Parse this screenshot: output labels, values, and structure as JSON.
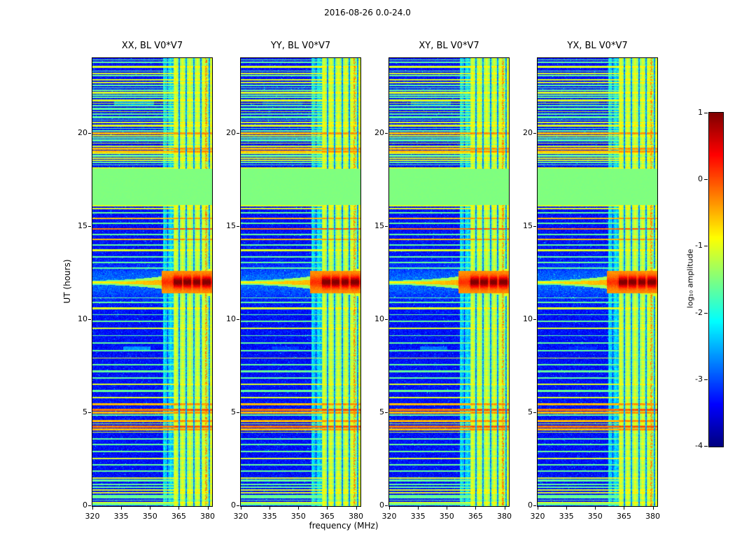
{
  "title": "2016-08-26 0.0-24.0",
  "axes": {
    "x_label": "frequency (MHz)",
    "y_label": "UT (hours)",
    "x_ticks": [
      320,
      335,
      350,
      365,
      380
    ],
    "y_ticks": [
      0,
      5,
      10,
      15,
      20
    ],
    "x_range": [
      320,
      382
    ],
    "y_range": [
      0,
      24
    ]
  },
  "colorbar": {
    "label": "log₁₀ amplitude",
    "ticks": [
      1,
      0,
      -1,
      -2,
      -3,
      -4
    ],
    "range": [
      -4,
      1
    ]
  },
  "chart_data": {
    "type": "heatmap",
    "title": "2016-08-26 0.0-24.0",
    "xlabel": "frequency (MHz)",
    "ylabel": "UT (hours)",
    "xlim": [
      320,
      382
    ],
    "ylim": [
      0,
      24
    ],
    "colormap": "jet",
    "value_scale": "log10 amplitude",
    "value_range": [
      -4,
      1
    ],
    "panels": [
      {
        "label": "XX, BL V0*V7"
      },
      {
        "label": "YY, BL V0*V7"
      },
      {
        "label": "XY, BL V0*V7"
      },
      {
        "label": "YX, BL V0*V7"
      }
    ],
    "seed": 20160826,
    "background_level": -3.6,
    "stripe_levels": {
      "g": -1.62,
      "y": -1.05,
      "o": -0.55,
      "r": -0.22
    },
    "features": {
      "flagged_block": {
        "t_start": 16.15,
        "t_end": 18.1,
        "level": -1.5
      },
      "rfi_band": {
        "f_start": 362,
        "f_end": 382,
        "level": -1.5,
        "bright_columns": [
          363.2,
          366.8,
          370.6,
          374.6,
          377.9,
          381.6
        ],
        "gap_columns": [
          364.9,
          368.7,
          372.6,
          376.4,
          380.6
        ],
        "red_column": [
          378.5,
          379.6
        ]
      },
      "cyan_band": {
        "f_start": 356.6,
        "f_end": 362.0,
        "level": -2.75
      },
      "burst": {
        "t_center": 12.0,
        "t_width": 0.3,
        "peak_level": 1.0,
        "line_t": 11.97,
        "band_blocks": [
          [
            362.3,
            366.4
          ],
          [
            367.2,
            371.4
          ],
          [
            372.2,
            376.1
          ],
          [
            377.0,
            381.6
          ]
        ]
      },
      "smears": [
        {
          "t": 21.65,
          "f1": 331,
          "f2": 352,
          "half_height": 0.13,
          "panel_amp": [
            1,
            0.5,
            0.8,
            0.45
          ]
        },
        {
          "t": 8.45,
          "f1": 336,
          "f2": 350,
          "half_height": 0.1,
          "panel_amp": [
            0.9,
            0.4,
            0.7,
            0.3
          ]
        }
      ],
      "stripes": [
        [
          23.92,
          "g"
        ],
        [
          23.78,
          "g"
        ],
        [
          23.55,
          "y"
        ],
        [
          23.32,
          "g"
        ],
        [
          23.2,
          "y"
        ],
        [
          23.08,
          "g"
        ],
        [
          22.85,
          "y"
        ],
        [
          22.7,
          "y"
        ],
        [
          22.55,
          "g"
        ],
        [
          22.42,
          "g"
        ],
        [
          22.28,
          "g"
        ],
        [
          22.15,
          "y"
        ],
        [
          22.02,
          "g"
        ],
        [
          21.9,
          "g"
        ],
        [
          21.75,
          "y"
        ],
        [
          21.6,
          "y"
        ],
        [
          21.45,
          "g"
        ],
        [
          21.3,
          "g"
        ],
        [
          21.15,
          "y"
        ],
        [
          21.0,
          "g"
        ],
        [
          20.85,
          "g"
        ],
        [
          20.7,
          "g"
        ],
        [
          20.55,
          "y"
        ],
        [
          20.4,
          "y"
        ],
        [
          20.25,
          "g"
        ],
        [
          20.1,
          "g"
        ],
        [
          19.98,
          "o"
        ],
        [
          19.85,
          "y"
        ],
        [
          19.72,
          "g"
        ],
        [
          19.6,
          "g"
        ],
        [
          19.45,
          "y"
        ],
        [
          19.3,
          "y"
        ],
        [
          19.15,
          "o"
        ],
        [
          19.0,
          "o"
        ],
        [
          18.9,
          "y"
        ],
        [
          18.78,
          "g"
        ],
        [
          18.65,
          "y"
        ],
        [
          18.52,
          "y"
        ],
        [
          18.42,
          "g"
        ],
        [
          18.3,
          "g"
        ],
        [
          18.14,
          "y"
        ],
        [
          16.12,
          "y"
        ],
        [
          15.95,
          "y"
        ],
        [
          15.7,
          "g"
        ],
        [
          15.42,
          "o"
        ],
        [
          15.15,
          "g"
        ],
        [
          14.85,
          "r"
        ],
        [
          14.55,
          "g"
        ],
        [
          14.28,
          "o"
        ],
        [
          14.0,
          "g"
        ],
        [
          13.7,
          "y"
        ],
        [
          13.35,
          "g"
        ],
        [
          13.05,
          "g"
        ],
        [
          12.75,
          "g"
        ],
        [
          11.15,
          "g"
        ],
        [
          10.9,
          "g"
        ],
        [
          10.6,
          "y"
        ],
        [
          10.25,
          "g"
        ],
        [
          9.9,
          "g"
        ],
        [
          9.52,
          "y"
        ],
        [
          9.12,
          "g"
        ],
        [
          8.72,
          "g"
        ],
        [
          8.32,
          "g"
        ],
        [
          7.92,
          "y"
        ],
        [
          7.55,
          "g"
        ],
        [
          7.22,
          "g"
        ],
        [
          6.85,
          "g"
        ],
        [
          6.5,
          "y"
        ],
        [
          6.15,
          "g"
        ],
        [
          5.8,
          "y"
        ],
        [
          5.45,
          "o"
        ],
        [
          5.15,
          "r"
        ],
        [
          5.0,
          "o"
        ],
        [
          4.85,
          "g"
        ],
        [
          4.55,
          "o"
        ],
        [
          4.4,
          "y"
        ],
        [
          4.25,
          "r"
        ],
        [
          4.1,
          "o"
        ],
        [
          3.95,
          "y"
        ],
        [
          3.6,
          "g"
        ],
        [
          3.28,
          "g"
        ],
        [
          2.92,
          "g"
        ],
        [
          2.55,
          "y"
        ],
        [
          2.2,
          "g"
        ],
        [
          1.85,
          "g"
        ],
        [
          1.5,
          "y"
        ],
        [
          1.35,
          "g"
        ],
        [
          1.15,
          "g"
        ],
        [
          1.0,
          "g"
        ],
        [
          0.85,
          "y"
        ],
        [
          0.7,
          "y"
        ],
        [
          0.55,
          "g"
        ],
        [
          0.45,
          "g"
        ],
        [
          0.3,
          "g"
        ],
        [
          0.18,
          "y"
        ],
        [
          0.08,
          "g"
        ]
      ]
    }
  }
}
